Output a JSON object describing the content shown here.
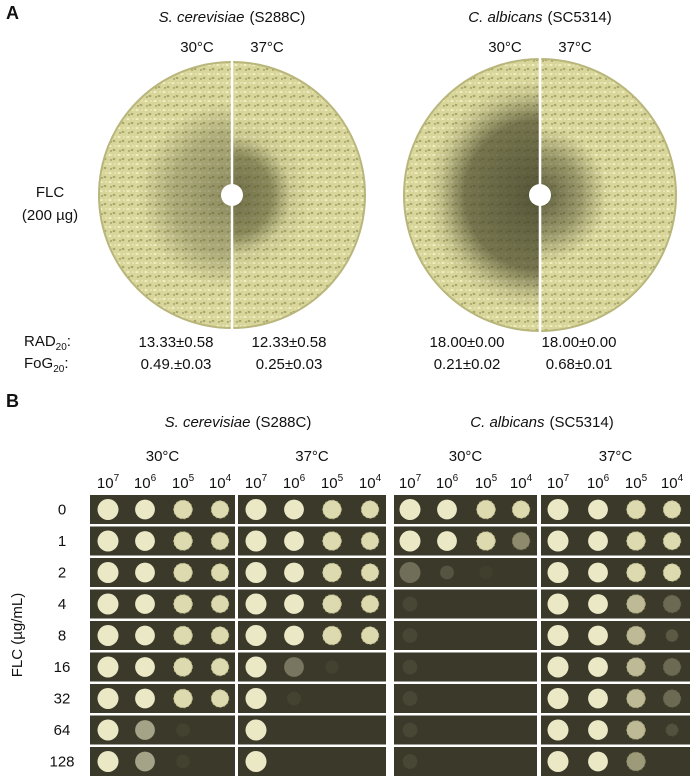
{
  "panel_a": {
    "label": "A",
    "species": [
      {
        "name": "S. cerevisiae",
        "strain": "(S288C)",
        "temperatures": [
          "30°C",
          "37°C"
        ],
        "rad20": [
          "13.33±0.58",
          "12.33±0.58"
        ],
        "fog20": [
          "0.49.±0.03",
          "0.25±0.03"
        ]
      },
      {
        "name": "C. albicans",
        "strain": "(SC5314)",
        "temperatures": [
          "30°C",
          "37°C"
        ],
        "rad20": [
          "18.00±0.00",
          "18.00±0.00"
        ],
        "fog20": [
          "0.21±0.02",
          "0.68±0.01"
        ]
      }
    ],
    "drug": "FLC",
    "dose": "(200 µg)",
    "rad_label": {
      "text": "RAD",
      "sub": "20",
      "suffix": ":"
    },
    "fog_label": {
      "text": "FoG",
      "sub": "20",
      "suffix": ":"
    }
  },
  "panel_b": {
    "label": "B",
    "species": [
      {
        "name": "S. cerevisiae",
        "strain": "(S288C)",
        "temperatures": [
          "30°C",
          "37°C"
        ]
      },
      {
        "name": "C. albicans",
        "strain": "(SC5314)",
        "temperatures": [
          "30°C",
          "37°C"
        ]
      }
    ],
    "dilutions": [
      {
        "base": "10",
        "exp": "7"
      },
      {
        "base": "10",
        "exp": "6"
      },
      {
        "base": "10",
        "exp": "5"
      },
      {
        "base": "10",
        "exp": "4"
      }
    ],
    "y_label": "FLC (µg/mL)",
    "concentrations": [
      0,
      1,
      2,
      4,
      8,
      16,
      32,
      64,
      128
    ]
  }
}
